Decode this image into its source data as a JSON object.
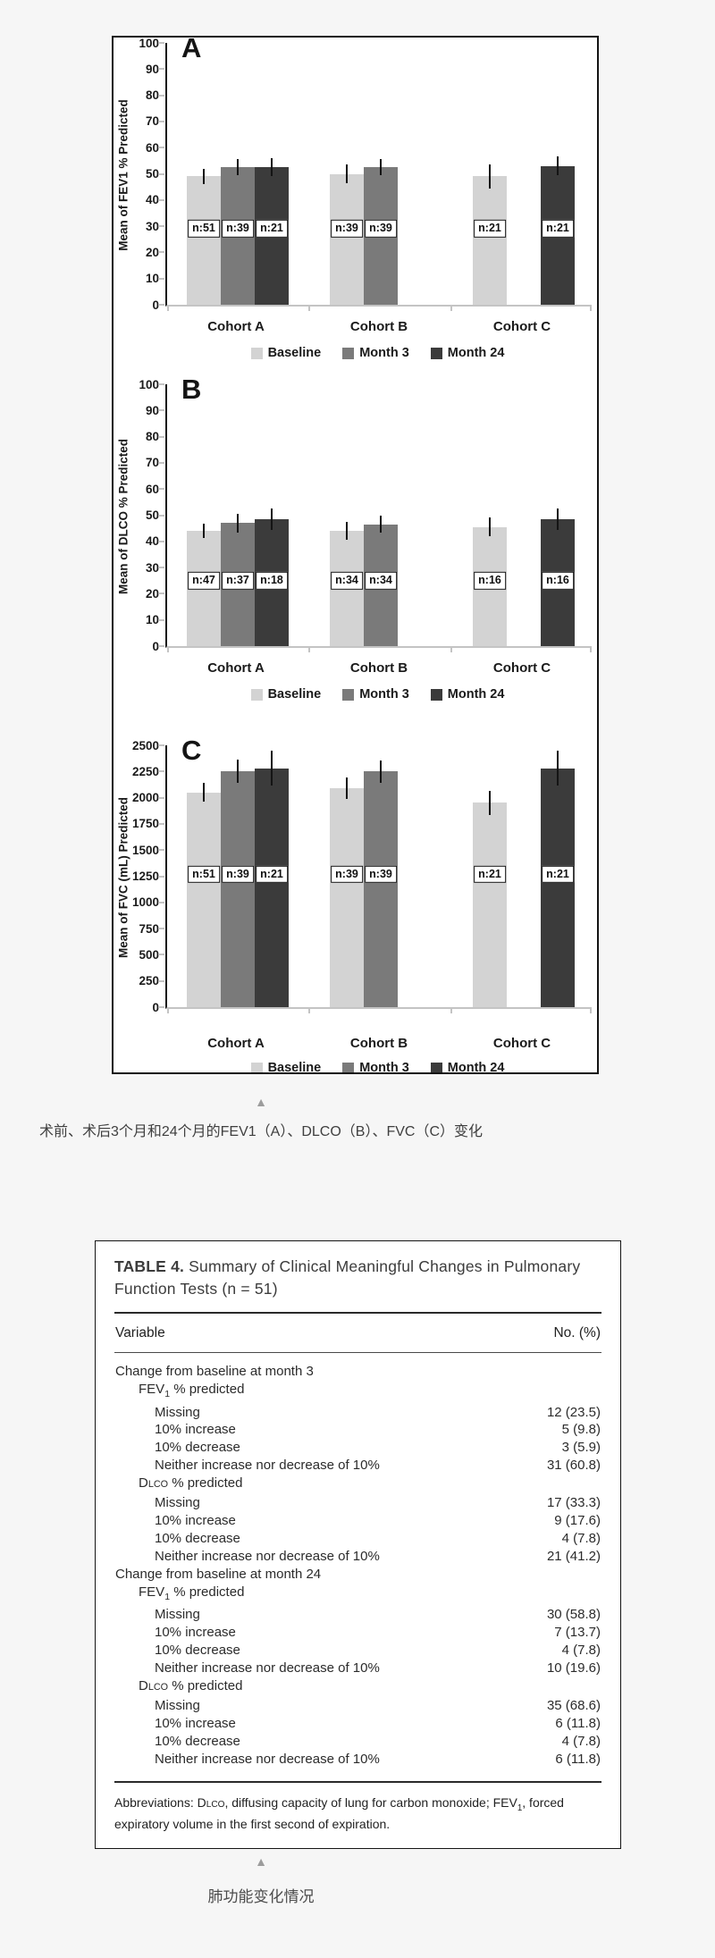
{
  "icons": {
    "collapse_triangle": "▲"
  },
  "captions": {
    "figure": "术前、术后3个月和24个月的FEV1（A）、DLCO（B）、FVC（C）变化",
    "table": "肺功能变化情况"
  },
  "chart_data": [
    {
      "type": "bar",
      "panel": "A",
      "ylabel": "Mean of FEV1 % Predicted",
      "ylim": [
        0,
        100
      ],
      "yticks": [
        0,
        10,
        20,
        30,
        40,
        50,
        60,
        70,
        80,
        90,
        100
      ],
      "categories": [
        "Cohort A",
        "Cohort B",
        "Cohort C"
      ],
      "n_label_y": 29,
      "grid": false,
      "legend_position": "bottom",
      "series": [
        {
          "name": "Baseline",
          "color": "#d3d3d3",
          "values": [
            49,
            50,
            49
          ],
          "errors": [
            3,
            3.5,
            4.5
          ],
          "n_labels": [
            "n:51",
            "n:39",
            "n:21"
          ]
        },
        {
          "name": "Month 3",
          "color": "#7a7a7a",
          "values": [
            52.5,
            52.5,
            null
          ],
          "errors": [
            3,
            3,
            null
          ],
          "n_labels": [
            "n:39",
            "n:39",
            null
          ]
        },
        {
          "name": "Month 24",
          "color": "#3b3b3b",
          "values": [
            52.5,
            null,
            53
          ],
          "errors": [
            3.5,
            null,
            3.5
          ],
          "n_labels": [
            "n:21",
            null,
            "n:21"
          ]
        }
      ]
    },
    {
      "type": "bar",
      "panel": "B",
      "ylabel": "Mean of DLCO % Predicted",
      "ylim": [
        0,
        100
      ],
      "yticks": [
        0,
        10,
        20,
        30,
        40,
        50,
        60,
        70,
        80,
        90,
        100
      ],
      "categories": [
        "Cohort A",
        "Cohort B",
        "Cohort C"
      ],
      "n_label_y": 25,
      "grid": false,
      "legend_position": "bottom",
      "series": [
        {
          "name": "Baseline",
          "color": "#d3d3d3",
          "values": [
            44,
            44,
            45.5
          ],
          "errors": [
            2.8,
            3.5,
            3.5
          ],
          "n_labels": [
            "n:47",
            "n:34",
            "n:16"
          ]
        },
        {
          "name": "Month 3",
          "color": "#7a7a7a",
          "values": [
            47,
            46.5,
            null
          ],
          "errors": [
            3.5,
            3.3,
            null
          ],
          "n_labels": [
            "n:37",
            "n:34",
            null
          ]
        },
        {
          "name": "Month 24",
          "color": "#3b3b3b",
          "values": [
            48.5,
            null,
            48.5
          ],
          "errors": [
            4,
            null,
            4
          ],
          "n_labels": [
            "n:18",
            null,
            "n:16"
          ]
        }
      ]
    },
    {
      "type": "bar",
      "panel": "C",
      "ylabel": "Mean of FVC (mL) Predicted",
      "ylim": [
        0,
        2500
      ],
      "yticks": [
        0,
        250,
        500,
        750,
        1000,
        1250,
        1500,
        1750,
        2000,
        2250,
        2500
      ],
      "categories": [
        "Cohort A",
        "Cohort B",
        "Cohort C"
      ],
      "n_label_y": 1270,
      "grid": false,
      "legend_position": "bottom",
      "series": [
        {
          "name": "Baseline",
          "color": "#d3d3d3",
          "values": [
            2050,
            2090,
            1950
          ],
          "errors": [
            90,
            100,
            115
          ],
          "n_labels": [
            "n:51",
            "n:39",
            "n:21"
          ]
        },
        {
          "name": "Month 3",
          "color": "#7a7a7a",
          "values": [
            2250,
            2250,
            null
          ],
          "errors": [
            110,
            105,
            null
          ],
          "n_labels": [
            "n:39",
            "n:39",
            null
          ]
        },
        {
          "name": "Month 24",
          "color": "#3b3b3b",
          "values": [
            2280,
            null,
            2280
          ],
          "errors": [
            165,
            null,
            165
          ],
          "n_labels": [
            "n:21",
            null,
            "n:21"
          ]
        }
      ]
    }
  ],
  "table": {
    "title_bold": "TABLE 4.",
    "title_rest": " Summary of Clinical Meaningful Changes in Pulmonary Function Tests (n = 51)",
    "columns": [
      "Variable",
      "No. (%)"
    ],
    "rows": [
      {
        "label": "Change from baseline at month 3",
        "value": "",
        "indent": 0
      },
      {
        "label": "FEV_1_ % predicted",
        "value": "",
        "indent": 1
      },
      {
        "label": "Missing",
        "value": "12 (23.5)",
        "indent": 2
      },
      {
        "label": "10% increase",
        "value": "5 (9.8)",
        "indent": 2
      },
      {
        "label": "10% decrease",
        "value": "3 (5.9)",
        "indent": 2
      },
      {
        "label": "Neither increase nor decrease of 10%",
        "value": "31 (60.8)",
        "indent": 2
      },
      {
        "label": "D~LCO~ % predicted",
        "value": "",
        "indent": 1
      },
      {
        "label": "Missing",
        "value": "17 (33.3)",
        "indent": 2
      },
      {
        "label": "10% increase",
        "value": "9 (17.6)",
        "indent": 2
      },
      {
        "label": "10% decrease",
        "value": "4 (7.8)",
        "indent": 2
      },
      {
        "label": "Neither increase nor decrease of 10%",
        "value": "21 (41.2)",
        "indent": 2
      },
      {
        "label": "Change from baseline at month 24",
        "value": "",
        "indent": 0
      },
      {
        "label": "FEV_1_ % predicted",
        "value": "",
        "indent": 1
      },
      {
        "label": "Missing",
        "value": "30 (58.8)",
        "indent": 2
      },
      {
        "label": "10% increase",
        "value": "7 (13.7)",
        "indent": 2
      },
      {
        "label": "10% decrease",
        "value": "4 (7.8)",
        "indent": 2
      },
      {
        "label": "Neither increase nor decrease of 10%",
        "value": "10 (19.6)",
        "indent": 2
      },
      {
        "label": "D~LCO~ % predicted",
        "value": "",
        "indent": 1
      },
      {
        "label": "Missing",
        "value": "35 (68.6)",
        "indent": 2
      },
      {
        "label": "10% increase",
        "value": "6 (11.8)",
        "indent": 2
      },
      {
        "label": "10% decrease",
        "value": "4 (7.8)",
        "indent": 2
      },
      {
        "label": "Neither increase nor decrease of 10%",
        "value": "6 (11.8)",
        "indent": 2
      }
    ],
    "footnote": "Abbreviations: D~LCO~, diffusing capacity of lung for carbon monoxide; FEV_1_, forced expiratory volume in the first second of expiration."
  }
}
